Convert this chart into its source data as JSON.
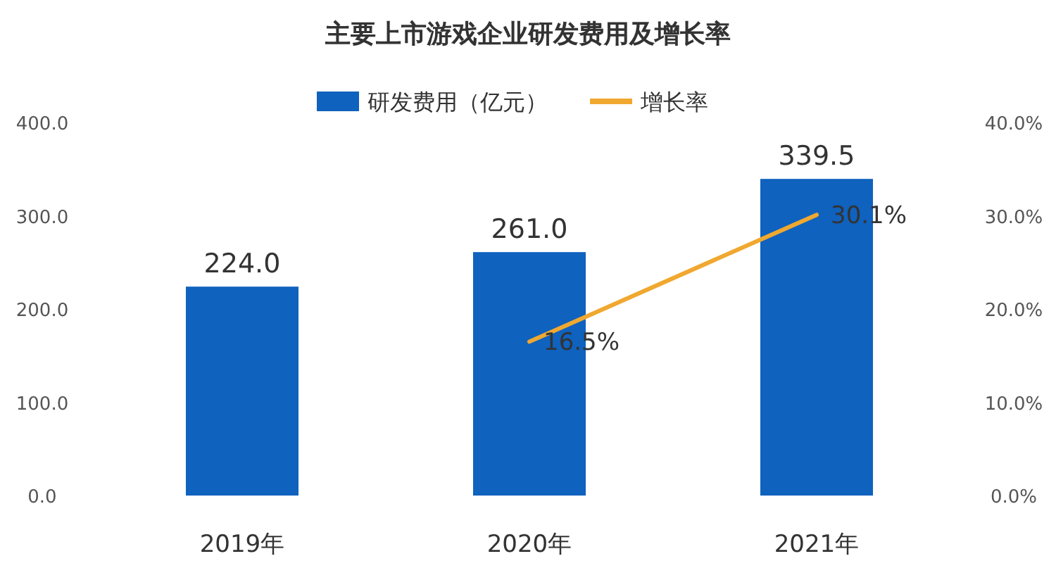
{
  "chart_data": {
    "type": "bar",
    "title": "主要上市游戏企业研发费用及增长率",
    "categories": [
      "2019年",
      "2020年",
      "2021年"
    ],
    "series": [
      {
        "name": "研发费用（亿元）",
        "color": "#0f62be",
        "values": [
          224.0,
          261.0,
          339.5
        ],
        "value_labels": [
          "224.0",
          "261.0",
          "339.5"
        ]
      },
      {
        "name": "增长率",
        "type": "line",
        "axis": "y2",
        "color": "#f0a830",
        "values": [
          null,
          16.5,
          30.1
        ],
        "value_labels": [
          null,
          "16.5%",
          "30.1%"
        ]
      }
    ],
    "ylim": [
      0,
      400
    ],
    "yticks": [
      {
        "value": 0,
        "label": "0.0"
      },
      {
        "value": 100,
        "label": "100.0"
      },
      {
        "value": 200,
        "label": "200.0"
      },
      {
        "value": 300,
        "label": "300.0"
      },
      {
        "value": 400,
        "label": "400.0"
      }
    ],
    "y2lim": [
      0,
      40
    ],
    "y2ticks": [
      {
        "value": 0,
        "label": "0.0%"
      },
      {
        "value": 10,
        "label": "10.0%"
      },
      {
        "value": 20,
        "label": "20.0%"
      },
      {
        "value": 30,
        "label": "30.0%"
      },
      {
        "value": 40,
        "label": "40.0%"
      }
    ],
    "legend": "top",
    "grid": false,
    "marker": "none"
  }
}
